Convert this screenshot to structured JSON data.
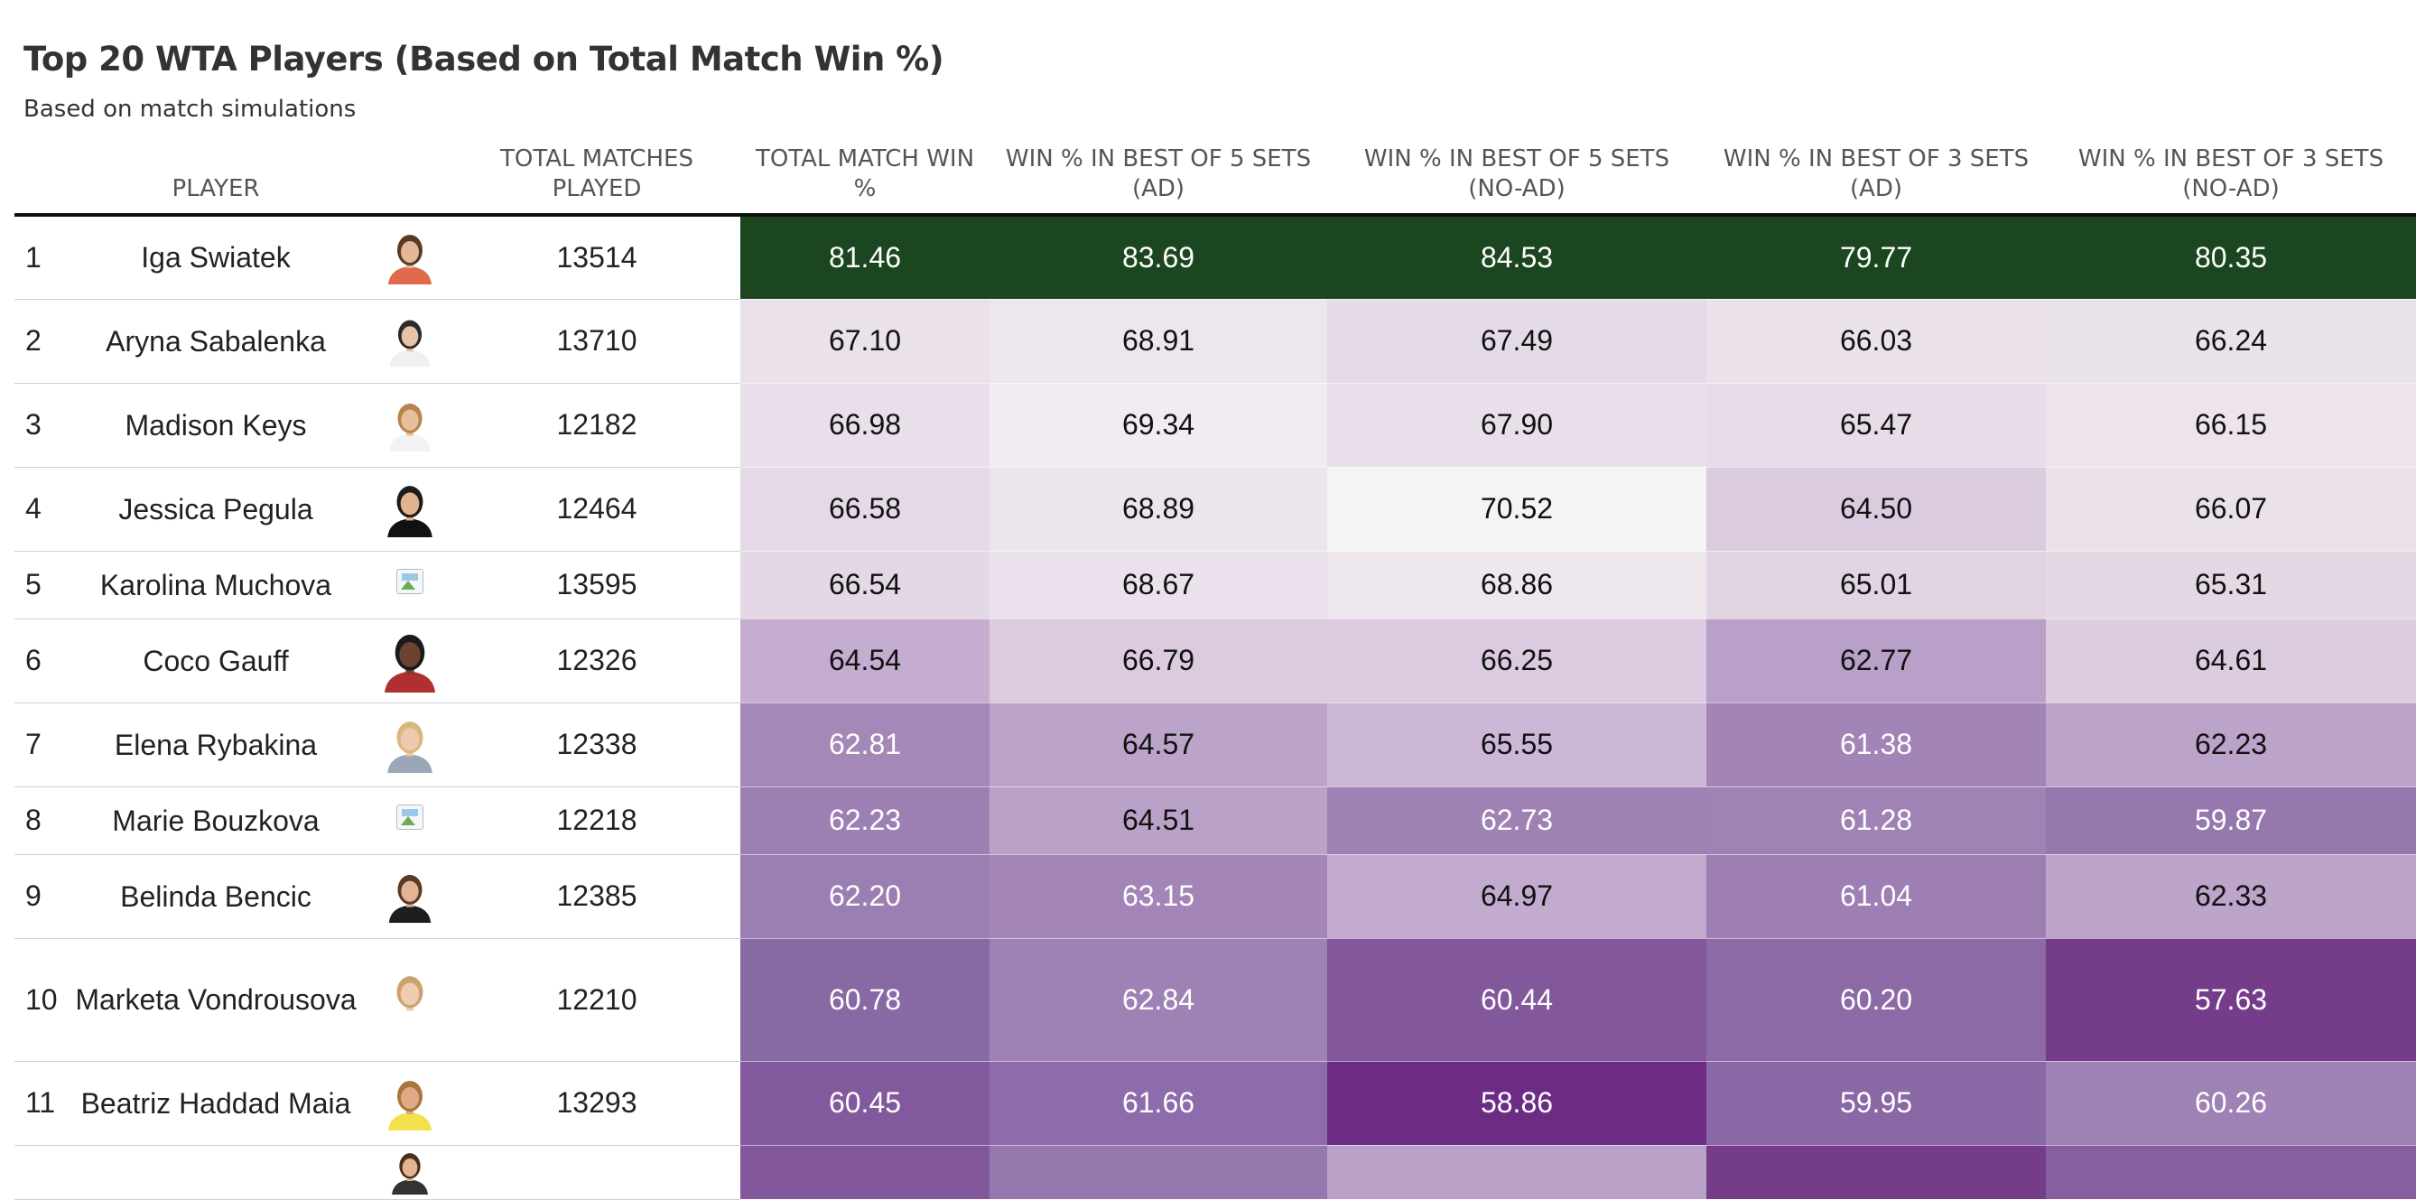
{
  "title": "Top 20 WTA Players (Based on Total Match Win %)",
  "subtitle": "Based on match simulations",
  "headers": {
    "rank": "",
    "player": "PLAYER",
    "image": "",
    "played": "TOTAL MATCHES PLAYED",
    "total_win": "TOTAL MATCH WIN %",
    "bo5_ad": "WIN % IN BEST OF 5 SETS (AD)",
    "bo5_noad": "WIN % IN BEST OF 5 SETS (NO-AD)",
    "bo3_ad": "WIN % IN BEST OF 3 SETS (AD)",
    "bo3_noad": "WIN % IN BEST OF 3 SETS (NO-AD)"
  },
  "colors": {
    "top_cell": "#1b4620",
    "scale_high": "#f3f4f3",
    "scale_low": "#6c2c85",
    "header_rule": "#111111",
    "row_rule": "#cfcfcf"
  },
  "rows": [
    {
      "rank": "1",
      "name": "Iga Swiatek",
      "image": "photo",
      "played": "13514",
      "values": [
        "81.46",
        "83.69",
        "84.53",
        "79.77",
        "80.35"
      ],
      "colors": [
        "#1b4620",
        "#1b4620",
        "#1b4620",
        "#1b4620",
        "#1b4620"
      ]
    },
    {
      "rank": "2",
      "name": "Aryna Sabalenka",
      "image": "photo",
      "played": "13710",
      "values": [
        "67.10",
        "68.91",
        "67.49",
        "66.03",
        "66.24"
      ],
      "colors": [
        "#eae1eb",
        "#eee6ee",
        "#e5dae7",
        "#ebe2ec",
        "#ebe3ec"
      ]
    },
    {
      "rank": "3",
      "name": "Madison Keys",
      "image": "photo",
      "played": "12182",
      "values": [
        "66.98",
        "69.34",
        "67.90",
        "65.47",
        "66.15"
      ],
      "colors": [
        "#e8dfea",
        "#f1ecf2",
        "#e9dfea",
        "#e7dce8",
        "#ece3ec"
      ]
    },
    {
      "rank": "4",
      "name": "Jessica Pegula",
      "image": "photo",
      "played": "12464",
      "values": [
        "66.58",
        "68.89",
        "70.52",
        "64.50",
        "66.07"
      ],
      "colors": [
        "#e5d9e7",
        "#ede5ed",
        "#f3f4f3",
        "#dbcbdf",
        "#eae1eb"
      ]
    },
    {
      "rank": "5",
      "name": "Karolina Muchova",
      "image": "broken",
      "played": "13595",
      "values": [
        "66.54",
        "68.67",
        "68.86",
        "65.01",
        "65.31"
      ],
      "colors": [
        "#e4d8e6",
        "#ebe1ec",
        "#eee7ee",
        "#e1d4e3",
        "#e4d8e5"
      ]
    },
    {
      "rank": "6",
      "name": "Coco Gauff",
      "image": "photo",
      "played": "12326",
      "values": [
        "64.54",
        "66.79",
        "66.25",
        "62.77",
        "64.61"
      ],
      "colors": [
        "#c4add0",
        "#dccbdf",
        "#dccbe0",
        "#b8a0c8",
        "#dccce0"
      ]
    },
    {
      "rank": "7",
      "name": "Elena Rybakina",
      "image": "photo",
      "played": "12338",
      "values": [
        "62.81",
        "64.57",
        "65.55",
        "61.38",
        "62.23"
      ],
      "colors": [
        "#a488b8",
        "#bba3ca",
        "#ccb7d6",
        "#a285b6",
        "#bba3ca"
      ]
    },
    {
      "rank": "8",
      "name": "Marie Bouzkova",
      "image": "broken",
      "played": "12218",
      "values": [
        "62.23",
        "64.51",
        "62.73",
        "61.28",
        "59.87"
      ],
      "colors": [
        "#9c7fb3",
        "#b9a1c8",
        "#9f82b4",
        "#a083b5",
        "#9578ae"
      ]
    },
    {
      "rank": "9",
      "name": "Belinda Bencic",
      "image": "photo",
      "played": "12385",
      "values": [
        "62.20",
        "63.15",
        "64.97",
        "61.04",
        "62.33"
      ],
      "colors": [
        "#9b7eb2",
        "#a386b7",
        "#c2abcf",
        "#9d7fb3",
        "#bca4cb"
      ]
    },
    {
      "rank": "10",
      "name": "Marketa Vondrousova",
      "image": "photo",
      "played": "12210",
      "values": [
        "60.78",
        "62.84",
        "60.44",
        "60.20",
        "57.63"
      ],
      "colors": [
        "#876aa4",
        "#9f82b5",
        "#82579b",
        "#8b6aa6",
        "#753c8a"
      ]
    },
    {
      "rank": "11",
      "name": "Beatriz Haddad Maia",
      "image": "photo",
      "played": "13293",
      "values": [
        "60.45",
        "61.66",
        "58.86",
        "59.95",
        "60.26"
      ],
      "colors": [
        "#82599d",
        "#8e6cab",
        "#6c2c85",
        "#8a67a5",
        "#9f82b5"
      ]
    },
    {
      "rank": "",
      "name": "",
      "image": "photo",
      "played": "",
      "values": [
        "",
        "",
        "",
        "",
        ""
      ],
      "colors": [
        "#82579b",
        "#9578ae",
        "#b9a1c8",
        "#753c8a",
        "#875fa0"
      ]
    }
  ]
}
